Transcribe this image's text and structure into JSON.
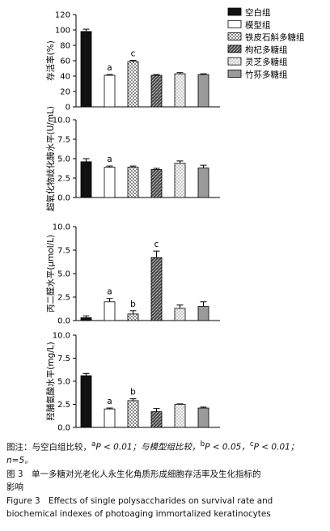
{
  "legend": [
    {
      "name": "空白组",
      "pattern": "solid-black"
    },
    {
      "name": "模型组",
      "pattern": "white"
    },
    {
      "name": "铁皮石斛多糖组",
      "pattern": "checker"
    },
    {
      "name": "枸杞多糖组",
      "pattern": "dark-hatch"
    },
    {
      "name": "灵芝多糖组",
      "pattern": "light-dots"
    },
    {
      "name": "竹荪多糖组",
      "pattern": "solid-gray"
    }
  ],
  "colors": {
    "solid-black": "#111111",
    "solid-gray": "#9a9a9a",
    "axis": "#000000"
  },
  "chart_data": [
    {
      "type": "bar",
      "ylabel": "存活率(%)",
      "ylim": [
        0,
        120
      ],
      "yticks": [
        "0",
        "20",
        "40",
        "60",
        "80",
        "100",
        "120"
      ],
      "values": [
        98,
        41,
        59,
        41,
        43,
        42
      ],
      "errors": [
        3,
        1,
        1.5,
        1,
        1.5,
        1
      ],
      "marks": [
        "",
        "a",
        "c",
        "",
        "",
        ""
      ]
    },
    {
      "type": "bar",
      "ylabel": "超氧化物歧化酶水平(U/mL)",
      "ylim": [
        0,
        10
      ],
      "yticks": [
        "0.0",
        "2.5",
        "5.0",
        "7.5",
        "10.0"
      ],
      "values": [
        4.6,
        3.9,
        3.9,
        3.6,
        4.4,
        3.8
      ],
      "errors": [
        0.4,
        0.15,
        0.15,
        0.15,
        0.3,
        0.35
      ],
      "marks": [
        "",
        "a",
        "",
        "",
        "",
        ""
      ]
    },
    {
      "type": "bar",
      "ylabel": "丙二醛水平(μmol/L)",
      "ylim": [
        0,
        10
      ],
      "yticks": [
        "0.0",
        "2.5",
        "5.0",
        "7.5",
        "10.0"
      ],
      "values": [
        0.3,
        2.0,
        0.7,
        6.7,
        1.3,
        1.5
      ],
      "errors": [
        0.2,
        0.35,
        0.35,
        0.7,
        0.35,
        0.5
      ],
      "marks": [
        "",
        "a",
        "b",
        "c",
        "",
        ""
      ]
    },
    {
      "type": "bar",
      "ylabel": "羟脯氨酸水平(mg/L)",
      "ylim": [
        0,
        10
      ],
      "yticks": [
        "0.0",
        "2.5",
        "5.0",
        "7.5",
        "10.0"
      ],
      "values": [
        5.6,
        2.0,
        2.9,
        1.7,
        2.5,
        2.1
      ],
      "errors": [
        0.25,
        0.1,
        0.2,
        0.35,
        0.05,
        0.1
      ],
      "marks": [
        "",
        "a",
        "b",
        "",
        "",
        ""
      ]
    }
  ],
  "caption": {
    "note_prefix": "图注：与空白组比较，",
    "sup_a": "a",
    "note_a": "P < 0.01；与模型组比较，",
    "sup_b": "b",
    "note_b": "P < 0.05，",
    "sup_c": "c",
    "note_c": "P < 0.01；",
    "n_text": "n=5。",
    "title_cn_1": "图 3　单一多糖对光老化人永生化角质形成细胞存活率及生化指标的",
    "title_cn_2": "影响",
    "title_en_1": "Figure 3　Effects of single polysaccharides on survival rate and",
    "title_en_2": "biochemical indexes of photoaging immortalized keratinocytes"
  }
}
